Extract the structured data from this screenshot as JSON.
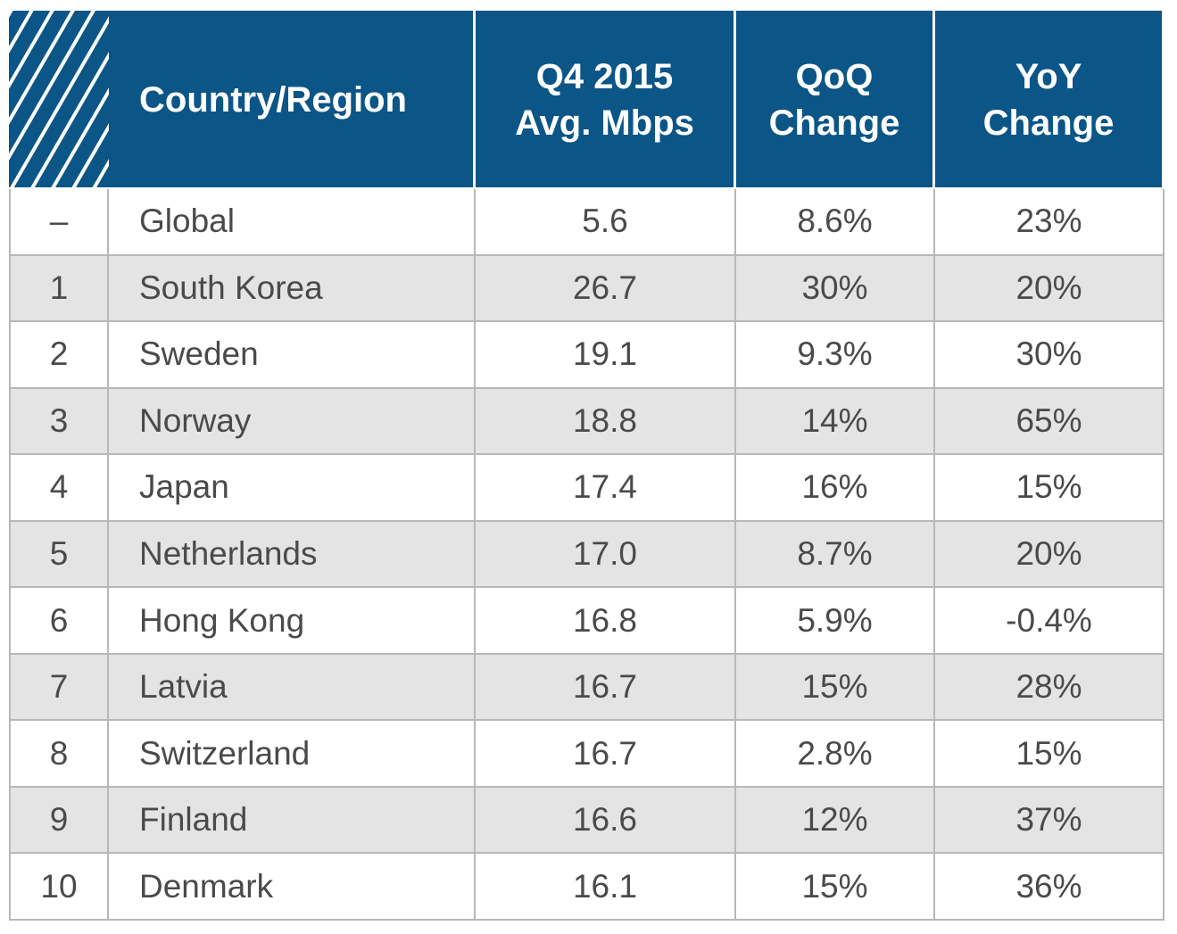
{
  "table": {
    "header": [
      [
        "Country/Region"
      ],
      [
        "Q4 2015",
        "Avg. Mbps"
      ],
      [
        "QoQ",
        "Change"
      ],
      [
        "YoY",
        "Change"
      ]
    ],
    "rows": [
      [
        "–",
        "Global",
        "5.6",
        "8.6%",
        "23%"
      ],
      [
        "1",
        "South Korea",
        "26.7",
        "30%",
        "20%"
      ],
      [
        "2",
        "Sweden",
        "19.1",
        "9.3%",
        "30%"
      ],
      [
        "3",
        "Norway",
        "18.8",
        "14%",
        "65%"
      ],
      [
        "4",
        "Japan",
        "17.4",
        "16%",
        "15%"
      ],
      [
        "5",
        "Netherlands",
        "17.0",
        "8.7%",
        "20%"
      ],
      [
        "6",
        "Hong Kong",
        "16.8",
        "5.9%",
        "-0.4%"
      ],
      [
        "7",
        "Latvia",
        "16.7",
        "15%",
        "28%"
      ],
      [
        "8",
        "Switzerland",
        "16.7",
        "2.8%",
        "15%"
      ],
      [
        "9",
        "Finland",
        "16.6",
        "12%",
        "37%"
      ],
      [
        "10",
        "Denmark",
        "16.1",
        "15%",
        "36%"
      ]
    ]
  }
}
